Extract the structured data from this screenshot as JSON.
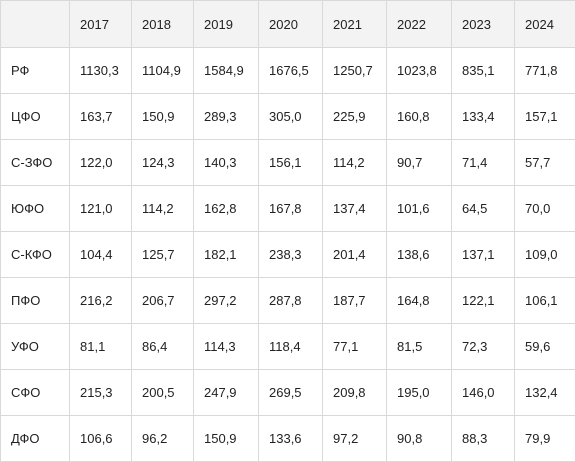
{
  "table": {
    "headers": [
      "",
      "2017",
      "2018",
      "2019",
      "2020",
      "2021",
      "2022",
      "2023",
      "2024"
    ],
    "rows": [
      {
        "label": "РФ",
        "values": [
          "1130,3",
          "1104,9",
          "1584,9",
          "1676,5",
          "1250,7",
          "1023,8",
          "835,1",
          "771,8"
        ]
      },
      {
        "label": "ЦФО",
        "values": [
          "163,7",
          "150,9",
          "289,3",
          "305,0",
          "225,9",
          "160,8",
          "133,4",
          "157,1"
        ]
      },
      {
        "label": "С-ЗФО",
        "values": [
          "122,0",
          "124,3",
          "140,3",
          "156,1",
          "114,2",
          "90,7",
          "71,4",
          "57,7"
        ]
      },
      {
        "label": "ЮФО",
        "values": [
          "121,0",
          "114,2",
          "162,8",
          "167,8",
          "137,4",
          "101,6",
          "64,5",
          "70,0"
        ]
      },
      {
        "label": "С-КФО",
        "values": [
          "104,4",
          "125,7",
          "182,1",
          "238,3",
          "201,4",
          "138,6",
          "137,1",
          "109,0"
        ]
      },
      {
        "label": "ПФО",
        "values": [
          "216,2",
          "206,7",
          "297,2",
          "287,8",
          "187,7",
          "164,8",
          "122,1",
          "106,1"
        ]
      },
      {
        "label": "УФО",
        "values": [
          "81,1",
          "86,4",
          "114,3",
          "118,4",
          "77,1",
          "81,5",
          "72,3",
          "59,6"
        ]
      },
      {
        "label": "СФО",
        "values": [
          "215,3",
          "200,5",
          "247,9",
          "269,5",
          "209,8",
          "195,0",
          "146,0",
          "132,4"
        ]
      },
      {
        "label": "ДФО",
        "values": [
          "106,6",
          "96,2",
          "150,9",
          "133,6",
          "97,2",
          "90,8",
          "88,3",
          "79,9"
        ]
      }
    ]
  }
}
